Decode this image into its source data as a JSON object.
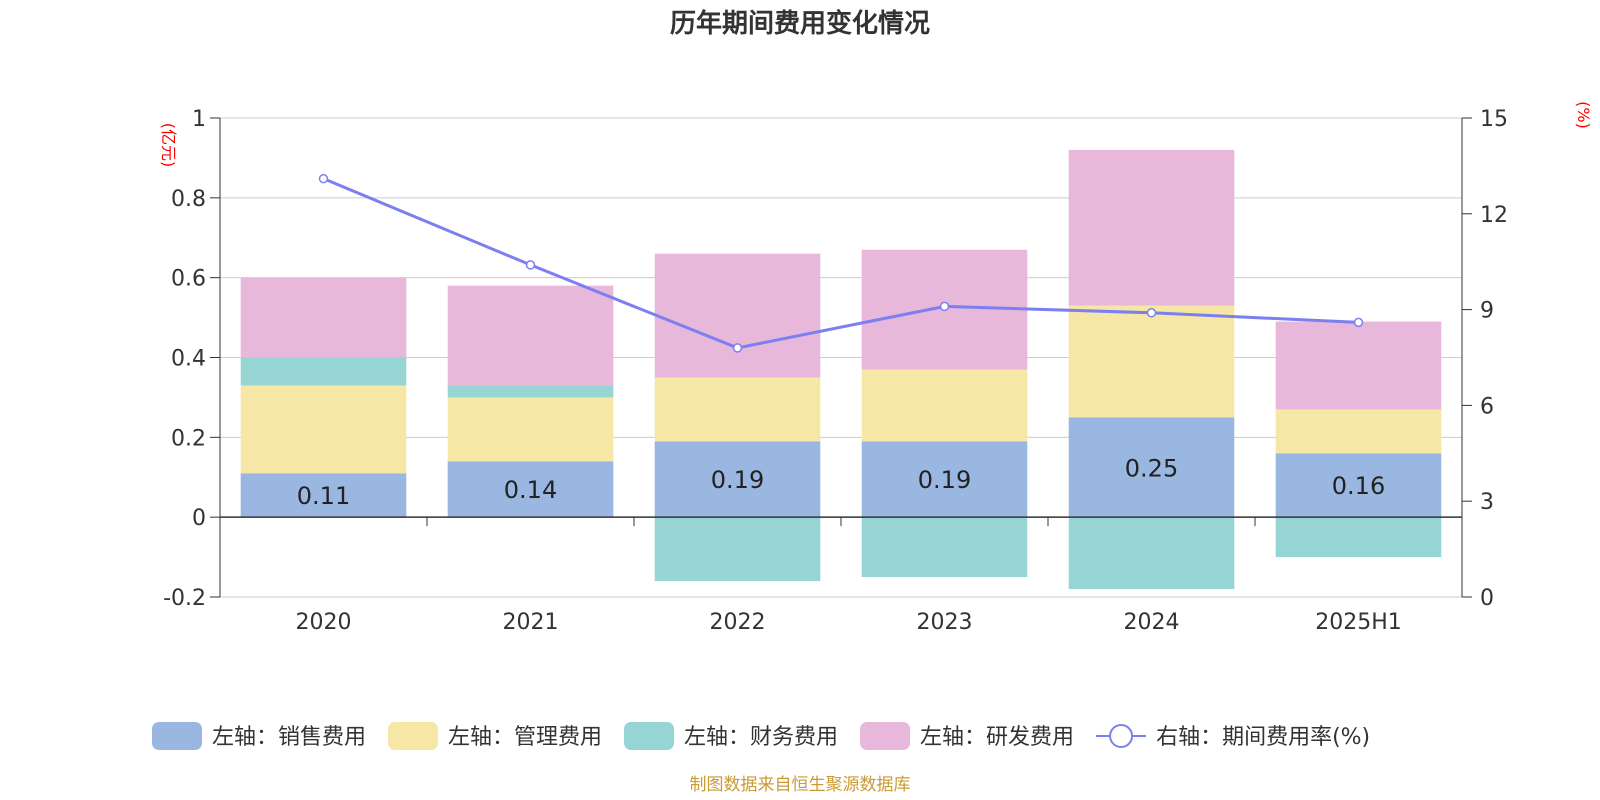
{
  "chart_data": {
    "type": "bar",
    "title": "历年期间费用变化情况",
    "left_axis": {
      "unit_label": "(亿元)",
      "ylim": [
        -0.2,
        1
      ],
      "ticks": [
        "-0.2",
        "0",
        "0.2",
        "0.4",
        "0.6",
        "0.8",
        "1"
      ]
    },
    "right_axis": {
      "unit_label": "(%)",
      "ylim": [
        0,
        15
      ],
      "ticks": [
        "0",
        "3",
        "6",
        "9",
        "12",
        "15"
      ]
    },
    "categories": [
      "2020",
      "2021",
      "2022",
      "2023",
      "2024",
      "2025H1"
    ],
    "series": [
      {
        "name": "左轴：销售费用",
        "kind": "bar",
        "stack": "total",
        "color": "#9ab7e1",
        "values": [
          0.11,
          0.14,
          0.19,
          0.19,
          0.25,
          0.16
        ],
        "show_labels": true
      },
      {
        "name": "左轴：管理费用",
        "kind": "bar",
        "stack": "total",
        "color": "#f7e7a6",
        "values": [
          0.22,
          0.16,
          0.16,
          0.18,
          0.28,
          0.11
        ]
      },
      {
        "name": "左轴：财务费用",
        "kind": "bar",
        "stack": "total",
        "color": "#97d4d4",
        "values": [
          0.07,
          0.03,
          -0.16,
          -0.15,
          -0.18,
          -0.1
        ]
      },
      {
        "name": "左轴：研发费用",
        "kind": "bar",
        "stack": "total",
        "color": "#e7b8d9",
        "values": [
          0.2,
          0.25,
          0.31,
          0.3,
          0.39,
          0.22
        ]
      },
      {
        "name": "右轴：期间费用率(%)",
        "kind": "line",
        "axis": "right",
        "color": "#7b7ff0",
        "values": [
          13.1,
          10.4,
          7.8,
          9.1,
          8.9,
          8.6
        ]
      }
    ],
    "grid": true,
    "legend_position": "bottom"
  },
  "footer": {
    "source": "制图数据来自恒生聚源数据库"
  }
}
